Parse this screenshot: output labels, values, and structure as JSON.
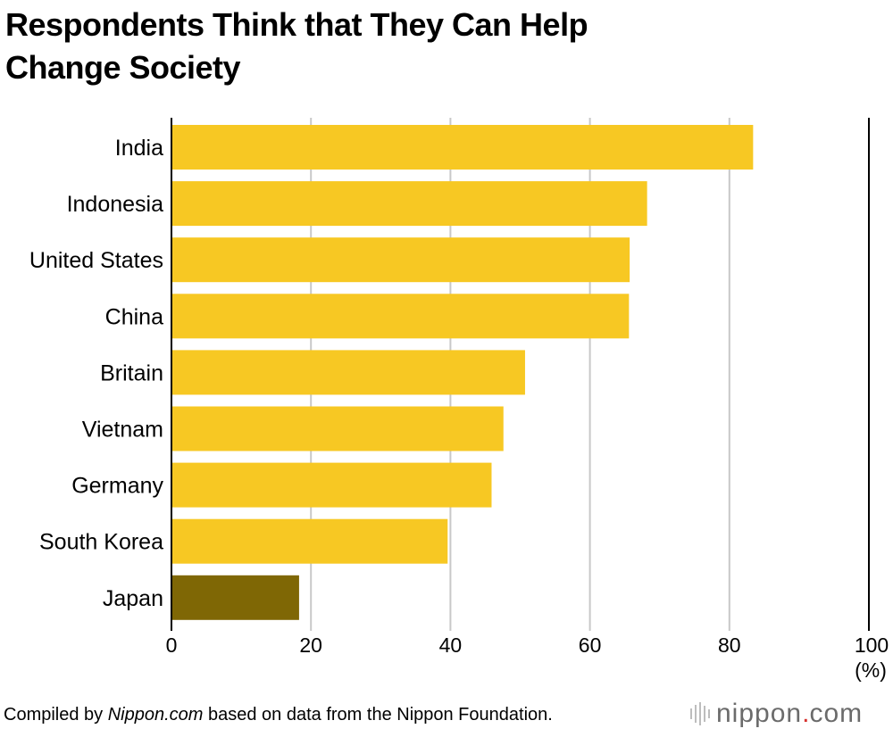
{
  "title": {
    "line1": "Respondents Think that They Can Help",
    "line2": "Change Society"
  },
  "chart_data": {
    "type": "bar",
    "orientation": "horizontal",
    "title": "Respondents Think that They Can Help Change Society",
    "categories": [
      "India",
      "Indonesia",
      "United States",
      "China",
      "Britain",
      "Vietnam",
      "Germany",
      "South Korea",
      "Japan"
    ],
    "values": [
      83.4,
      68.2,
      65.7,
      65.6,
      50.7,
      47.6,
      45.9,
      39.6,
      18.3
    ],
    "highlight": "Japan",
    "xlim": [
      0,
      100
    ],
    "xticks": [
      0,
      20,
      40,
      60,
      80,
      100
    ],
    "xlabel": "(%)",
    "grid": true,
    "colors": {
      "bar": "#F7C823",
      "highlight": "#7F6705",
      "grid": "#c8c8c8",
      "axis": "#000000"
    }
  },
  "footer": {
    "prefix": "Compiled by ",
    "source": "Nippon.com",
    "suffix": " based on data from the Nippon Foundation."
  },
  "logo": {
    "word": "nippon",
    "dot": ".",
    "tld": "com",
    "icon": "bar-glyph-icon",
    "accent": "#d6322e"
  }
}
